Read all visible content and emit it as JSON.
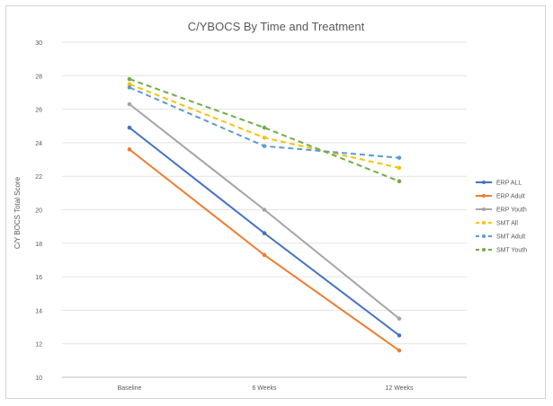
{
  "chart_data": {
    "type": "line",
    "title": "C/YBOCS By Time and Treatment",
    "xlabel": "",
    "ylabel": "C/Y BOCS Total Score",
    "categories": [
      "Baseline",
      "6 Weeks",
      "12 Weeks"
    ],
    "ylim": [
      10,
      30
    ],
    "yticks": [
      "10",
      "12",
      "14",
      "16",
      "18",
      "20",
      "22",
      "24",
      "26",
      "28",
      "30"
    ],
    "grid": true,
    "legend_position": "right",
    "series": [
      {
        "name": "ERP ALL",
        "values": [
          24.9,
          18.6,
          12.5
        ],
        "color": "#4472c4",
        "dashed": false
      },
      {
        "name": "ERP Adult",
        "values": [
          23.6,
          17.3,
          11.6
        ],
        "color": "#ed7d31",
        "dashed": false
      },
      {
        "name": "ERP Youth",
        "values": [
          26.3,
          20.0,
          13.5
        ],
        "color": "#a5a5a5",
        "dashed": false
      },
      {
        "name": "SMT All",
        "values": [
          27.5,
          24.3,
          22.5
        ],
        "color": "#ffc000",
        "dashed": true
      },
      {
        "name": "SMT Adult",
        "values": [
          27.3,
          23.8,
          23.1
        ],
        "color": "#5b9bd5",
        "dashed": true
      },
      {
        "name": "SMT Youth",
        "values": [
          27.8,
          24.9,
          21.7
        ],
        "color": "#70ad47",
        "dashed": true
      }
    ]
  }
}
